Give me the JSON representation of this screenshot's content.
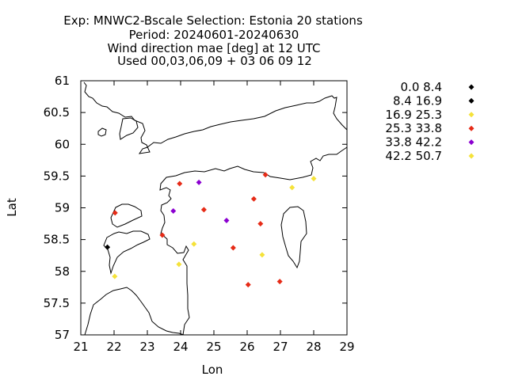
{
  "chart_data": {
    "type": "scatter",
    "title_lines": [
      "Exp: MNWC2-Bscale   Selection: Estonia     20 stations",
      "Period: 20240601-20240630",
      "Wind direction mae [deg] at  12 UTC",
      "Used 00,03,06,09 + 03 06 09 12"
    ],
    "xlabel": "Lon",
    "ylabel": "Lat",
    "xlim": [
      21,
      29
    ],
    "ylim": [
      57,
      61
    ],
    "xticks": [
      "21",
      "22",
      "23",
      "24",
      "25",
      "26",
      "27",
      "28",
      "29"
    ],
    "yticks": [
      "57",
      "57.5",
      "58",
      "58.5",
      "59",
      "59.5",
      "60",
      "60.5",
      "61"
    ],
    "marker": "diamond",
    "legend_position": "right",
    "classes": [
      {
        "label": "0.0 8.4",
        "color": "#000000"
      },
      {
        "label": "8.4 16.9",
        "color": "#000000"
      },
      {
        "label": "16.9 25.3",
        "color": "#f5e23a"
      },
      {
        "label": "25.3 33.8",
        "color": "#e62b17"
      },
      {
        "label": "33.8 42.2",
        "color": "#8b00d0"
      },
      {
        "label": "42.2 50.7",
        "color": "#f5e23a"
      }
    ],
    "points": [
      {
        "lon": 21.8,
        "lat": 58.38,
        "class": 1
      },
      {
        "lon": 22.03,
        "lat": 58.92,
        "class": 3
      },
      {
        "lon": 22.02,
        "lat": 57.92,
        "class": 2
      },
      {
        "lon": 23.45,
        "lat": 58.57,
        "class": 3
      },
      {
        "lon": 23.78,
        "lat": 58.95,
        "class": 4
      },
      {
        "lon": 23.97,
        "lat": 59.38,
        "class": 3
      },
      {
        "lon": 24.55,
        "lat": 59.4,
        "class": 4
      },
      {
        "lon": 24.7,
        "lat": 58.97,
        "class": 3
      },
      {
        "lon": 24.4,
        "lat": 58.43,
        "class": 2
      },
      {
        "lon": 23.95,
        "lat": 58.11,
        "class": 2
      },
      {
        "lon": 25.38,
        "lat": 58.8,
        "class": 4
      },
      {
        "lon": 25.58,
        "lat": 58.37,
        "class": 3
      },
      {
        "lon": 26.2,
        "lat": 59.14,
        "class": 3
      },
      {
        "lon": 26.55,
        "lat": 59.52,
        "class": 3
      },
      {
        "lon": 26.4,
        "lat": 58.75,
        "class": 3
      },
      {
        "lon": 26.45,
        "lat": 58.26,
        "class": 2
      },
      {
        "lon": 26.03,
        "lat": 57.79,
        "class": 3
      },
      {
        "lon": 26.98,
        "lat": 57.84,
        "class": 3
      },
      {
        "lon": 27.35,
        "lat": 59.32,
        "class": 2
      },
      {
        "lon": 28.0,
        "lat": 59.46,
        "class": 2
      }
    ]
  }
}
